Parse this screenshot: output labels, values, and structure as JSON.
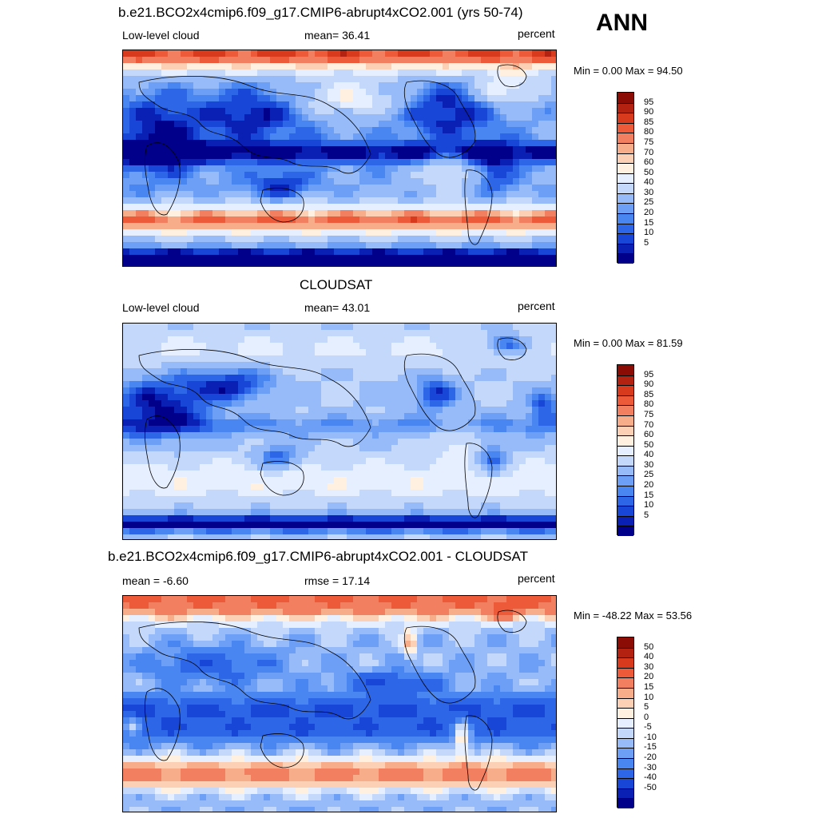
{
  "season": "ANN",
  "panels": [
    {
      "id": "model",
      "title": "b.e21.BCO2x4cmip6.f09_g17.CMIP6-abrupt4xCO2.001 (yrs 50-74)",
      "left_label": "Low-level cloud",
      "center_label": "mean=  36.41",
      "right_label": "percent",
      "minmax": "Min =   0.00 Max =  94.50",
      "colorbar_labels": [
        "95",
        "90",
        "85",
        "80",
        "75",
        "70",
        "60",
        "50",
        "40",
        "30",
        "25",
        "20",
        "15",
        "10",
        "5"
      ],
      "colors": [
        "#00008a",
        "#0a1fb4",
        "#1846d6",
        "#2e66e8",
        "#4a86f2",
        "#6e9ff6",
        "#97bbf8",
        "#c3d8fb",
        "#e6efff",
        "#fff0e0",
        "#fbd0b4",
        "#f7ac8a",
        "#f28060",
        "#ec5a3a",
        "#d83a1e",
        "#b32210",
        "#8a0c04"
      ]
    },
    {
      "id": "obs",
      "title": "CLOUDSAT",
      "left_label": "Low-level cloud",
      "center_label": "mean=  43.01",
      "right_label": "percent",
      "minmax": "Min =   0.00 Max =  81.59",
      "colorbar_labels": [
        "95",
        "90",
        "85",
        "80",
        "75",
        "70",
        "60",
        "50",
        "40",
        "30",
        "25",
        "20",
        "15",
        "10",
        "5"
      ],
      "colors": [
        "#00008a",
        "#0a1fb4",
        "#1846d6",
        "#2e66e8",
        "#4a86f2",
        "#6e9ff6",
        "#97bbf8",
        "#c3d8fb",
        "#e6efff",
        "#fff0e0",
        "#fbd0b4",
        "#f7ac8a",
        "#f28060",
        "#ec5a3a",
        "#d83a1e",
        "#b32210",
        "#8a0c04"
      ]
    },
    {
      "id": "diff",
      "title": "b.e21.BCO2x4cmip6.f09_g17.CMIP6-abrupt4xCO2.001 - CLOUDSAT",
      "left_label": "mean =  -6.60",
      "center_label": "rmse =  17.14",
      "right_label": "percent",
      "minmax": "Min = -48.22 Max =  53.56",
      "colorbar_labels": [
        "50",
        "40",
        "30",
        "20",
        "15",
        "10",
        "5",
        "0",
        "-5",
        "-10",
        "-15",
        "-20",
        "-30",
        "-40",
        "-50"
      ],
      "colors": [
        "#00008a",
        "#0a1fb4",
        "#1846d6",
        "#2e66e8",
        "#4a86f2",
        "#6e9ff6",
        "#97bbf8",
        "#c3d8fb",
        "#e6efff",
        "#fff0e0",
        "#fbd0b4",
        "#f7ac8a",
        "#f28060",
        "#ec5a3a",
        "#d83a1e",
        "#b32210",
        "#8a0c04"
      ]
    }
  ]
}
